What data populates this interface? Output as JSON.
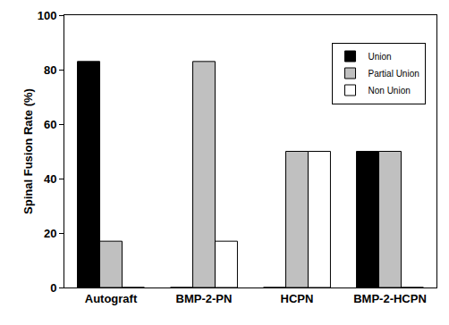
{
  "chart_data": {
    "type": "bar",
    "y_label": "Spinal Fusion Rate (%)",
    "categories": [
      "Autograft",
      "BMP-2-PN",
      "HCPN",
      "BMP-2-HCPN"
    ],
    "series": [
      {
        "name": "Union",
        "color": "#000000",
        "values": [
          83,
          0,
          0,
          50
        ]
      },
      {
        "name": "Partial Union",
        "color": "#c0c0c0",
        "values": [
          17,
          83,
          50,
          50
        ]
      },
      {
        "name": "Non Union",
        "color": "#ffffff",
        "values": [
          0,
          17,
          50,
          0
        ]
      }
    ],
    "ylim": [
      0,
      100
    ],
    "yticks": [
      0,
      20,
      40,
      60,
      80,
      100
    ],
    "grid": false,
    "legend": "upper right"
  }
}
